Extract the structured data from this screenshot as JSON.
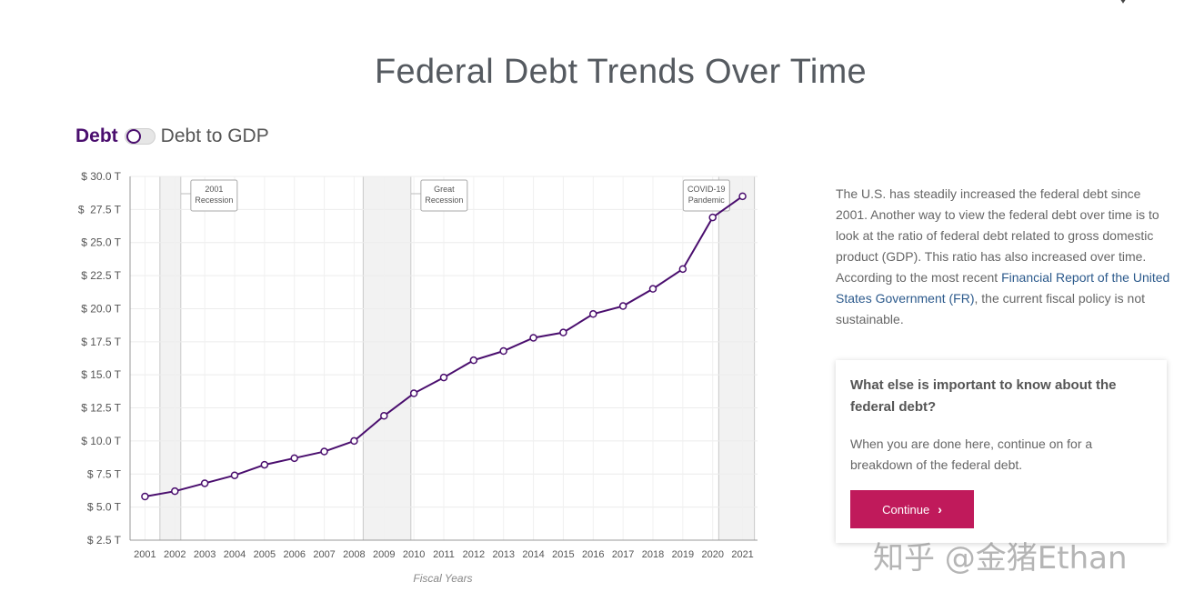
{
  "page": {
    "title": "Federal Debt Trends Over Time"
  },
  "toggle": {
    "left_label": "Debt",
    "right_label": "Debt to GDP",
    "selected": "Debt"
  },
  "description": {
    "text_before_link": "The U.S. has steadily increased the federal debt since 2001. Another way to view the federal debt over time is to look at the ratio of federal debt related to gross domestic product (GDP). This ratio has also increased over time. According to the most recent ",
    "link_text": "Financial Report of the United States Government (FR)",
    "text_after_link": ", the current fiscal policy is not sustainable."
  },
  "card": {
    "title": "What else is important to know about the federal debt?",
    "text": "When you are done here, continue on for a breakdown of the federal debt.",
    "button_label": "Continue",
    "button_icon": "chevron-right-icon"
  },
  "watermark": "知乎 @金猪Ethan",
  "colors": {
    "line": "#4a0e6e",
    "accent_button": "#c01a5b",
    "recession_band": "#f2f2f2",
    "link": "#2c5a8c"
  },
  "chart_data": {
    "type": "line",
    "title": "",
    "xlabel": "Fiscal Years",
    "ylabel": "",
    "x": [
      2001,
      2002,
      2003,
      2004,
      2005,
      2006,
      2007,
      2008,
      2009,
      2010,
      2011,
      2012,
      2013,
      2014,
      2015,
      2016,
      2017,
      2018,
      2019,
      2020,
      2021
    ],
    "series": [
      {
        "values": [
          5.8,
          6.2,
          6.8,
          7.4,
          8.2,
          8.7,
          9.2,
          10.0,
          11.9,
          13.6,
          14.8,
          16.1,
          16.8,
          17.8,
          18.2,
          19.6,
          20.2,
          21.5,
          23.0,
          26.9,
          28.5
        ]
      }
    ],
    "ylim": [
      2.5,
      30.0
    ],
    "y_ticks": [
      2.5,
      5.0,
      7.5,
      10.0,
      12.5,
      15.0,
      17.5,
      20.0,
      22.5,
      25.0,
      27.5,
      30.0
    ],
    "y_tick_labels": [
      "$ 2.5 T",
      "$ 5.0 T",
      "$ 7.5 T",
      "$ 10.0 T",
      "$ 12.5 T",
      "$ 15.0 T",
      "$ 17.5 T",
      "$ 20.0 T",
      "$ 22.5 T",
      "$ 25.0 T",
      "$  27.5 T",
      "$ 30.0 T"
    ],
    "x_tick_labels": [
      "2001",
      "2002",
      "2003",
      "2004",
      "2005",
      "2006",
      "2007",
      "2008",
      "2009",
      "2010",
      "2011",
      "2012",
      "2013",
      "2014",
      "2015",
      "2016",
      "2017",
      "2018",
      "2019",
      "2020",
      "2021"
    ],
    "grid": true,
    "legend": "none",
    "recessions": [
      {
        "label_lines": [
          "2001",
          "Recession"
        ],
        "start": 2001.5,
        "end": 2002.2
      },
      {
        "label_lines": [
          "Great",
          "Recession"
        ],
        "start": 2008.3,
        "end": 2009.9
      },
      {
        "label_lines": [
          "COVID-19",
          "Pandemic"
        ],
        "start": 2020.2,
        "end": 2021.4
      }
    ]
  }
}
